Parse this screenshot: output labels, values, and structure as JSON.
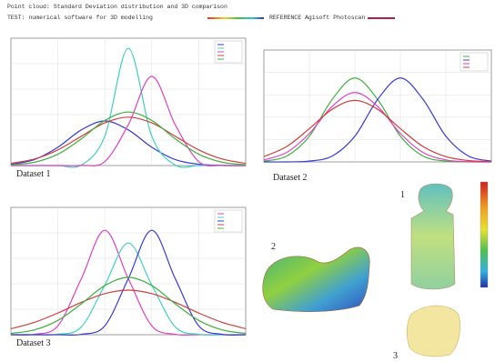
{
  "header": {
    "line1": "Point cloud: Standard Deviation distribution and 3D comparison",
    "test_label": "TEST: numerical software for 3D modelling",
    "reference_label": "REFERENCE Agisoft Photoscan"
  },
  "chart_data": [
    {
      "type": "line",
      "title": "Dataset 1",
      "x": [
        0,
        1,
        2,
        3,
        4,
        5,
        6,
        7,
        8,
        9,
        10
      ],
      "xlim": [
        0,
        10
      ],
      "ylim": [
        0,
        100
      ],
      "grid": true,
      "series": [
        {
          "color": "#3a3ad8",
          "values": [
            1.0,
            4.7,
            14.4,
            28.0,
            35,
            28.0,
            14.4,
            4.7,
            1.0,
            0.2,
            0
          ]
        },
        {
          "color": "#40d0c0",
          "values": [
            0,
            0,
            0,
            0.4,
            23,
            92,
            23,
            0.4,
            0,
            0,
            0
          ]
        },
        {
          "color": "#e040c0",
          "values": [
            0,
            0,
            0,
            0.1,
            3.1,
            32,
            70,
            32,
            3.1,
            0.1,
            0
          ]
        },
        {
          "color": "#d04040",
          "values": [
            1.7,
            5.1,
            12.3,
            23,
            33.5,
            38,
            33.5,
            23,
            12.3,
            5.1,
            1.7
          ]
        },
        {
          "color": "#40b040",
          "values": [
            0.6,
            2.6,
            8.9,
            21,
            35.4,
            42,
            35.4,
            21,
            8.9,
            2.6,
            0.6
          ]
        }
      ]
    },
    {
      "type": "line",
      "title": "Dataset 2",
      "x": [
        0,
        1,
        2,
        3,
        4,
        5,
        6,
        7,
        8,
        9,
        10
      ],
      "xlim": [
        0,
        10
      ],
      "ylim": [
        0,
        100
      ],
      "grid": true,
      "series": [
        {
          "color": "#40b040",
          "values": [
            0.7,
            5.2,
            23,
            55.8,
            75,
            55.8,
            23,
            5.2,
            0.7,
            0,
            0
          ]
        },
        {
          "color": "#3a3ad8",
          "values": [
            0,
            0,
            0.7,
            5.2,
            23,
            55.8,
            75,
            55.8,
            23,
            5.2,
            0.7
          ]
        },
        {
          "color": "#e040c0",
          "values": [
            1.8,
            8.4,
            25.4,
            49.6,
            62,
            49.6,
            25.4,
            8.4,
            1.8,
            0.2,
            0
          ]
        },
        {
          "color": "#d04040",
          "values": [
            4.7,
            13.7,
            29.7,
            47,
            55,
            47,
            29.7,
            13.7,
            4.7,
            1.2,
            0.2
          ]
        }
      ]
    },
    {
      "type": "line",
      "title": "Dataset 3",
      "x": [
        0,
        1,
        2,
        3,
        4,
        5,
        6,
        7,
        8,
        9,
        10
      ],
      "xlim": [
        0,
        10
      ],
      "ylim": [
        0,
        100
      ],
      "grid": true,
      "series": [
        {
          "color": "#e040c0",
          "values": [
            0,
            0.3,
            7,
            44,
            82,
            44,
            7,
            0.3,
            0,
            0,
            0
          ]
        },
        {
          "color": "#40d0c0",
          "values": [
            0,
            0,
            0.3,
            6.1,
            39,
            72,
            39,
            6.1,
            0.3,
            0,
            0
          ]
        },
        {
          "color": "#3a3ad8",
          "values": [
            0,
            0,
            0,
            0.3,
            7,
            44,
            82,
            44,
            7,
            0.3,
            0
          ]
        },
        {
          "color": "#d04040",
          "values": [
            4.7,
            9.7,
            17,
            25.4,
            32.3,
            35,
            32.3,
            25.4,
            17,
            9.7,
            4.7
          ]
        },
        {
          "color": "#40b040",
          "values": [
            1.0,
            3.8,
            11.2,
            24.3,
            38.6,
            45,
            38.6,
            24.3,
            11.2,
            3.8,
            1.0
          ]
        }
      ]
    }
  ],
  "models": {
    "label_1": "1",
    "label_2": "2",
    "label_3": "3"
  }
}
